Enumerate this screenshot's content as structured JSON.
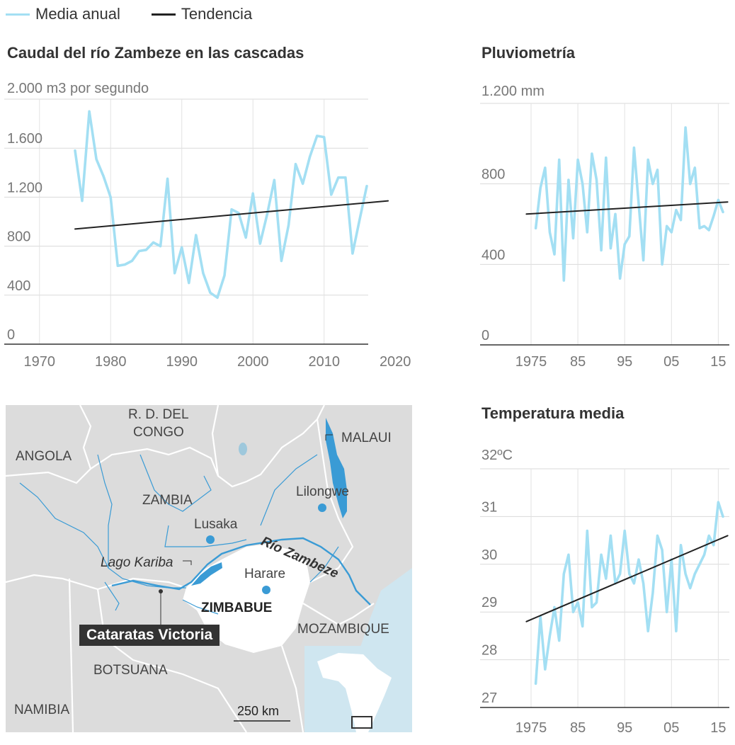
{
  "legend": {
    "items": [
      {
        "label": "Media anual",
        "color": "#a3dff3"
      },
      {
        "label": "Tendencia",
        "color": "#222222"
      }
    ]
  },
  "chart_data": [
    {
      "type": "line",
      "title": "Caudal del río Zambeze en las cascadas",
      "ylabel": "2.000 m3 por segundo",
      "ylim": [
        0,
        2000
      ],
      "yticks": [
        0,
        400,
        800,
        1200,
        1600
      ],
      "ytick_labels": [
        "0",
        "400",
        "800",
        "1.200",
        "1.600"
      ],
      "xlim": [
        1966,
        2018
      ],
      "xticks": [
        1970,
        1980,
        1990,
        2000,
        2010,
        2020
      ],
      "xtick_labels": [
        "1970",
        "1980",
        "1990",
        "2000",
        "2010",
        "2020"
      ],
      "grid": true,
      "series": [
        {
          "name": "Media anual",
          "x": [
            1975,
            1976,
            1977,
            1978,
            1979,
            1980,
            1981,
            1982,
            1983,
            1984,
            1985,
            1986,
            1987,
            1988,
            1989,
            1990,
            1991,
            1992,
            1993,
            1994,
            1995,
            1996,
            1997,
            1998,
            1999,
            2000,
            2001,
            2002,
            2003,
            2004,
            2005,
            2006,
            2007,
            2008,
            2009,
            2010,
            2011,
            2012,
            2013,
            2014,
            2015,
            2016
          ],
          "y": [
            1580,
            1170,
            1900,
            1510,
            1370,
            1200,
            640,
            650,
            680,
            760,
            770,
            830,
            800,
            1350,
            580,
            790,
            500,
            890,
            580,
            420,
            380,
            560,
            1100,
            1070,
            870,
            1230,
            820,
            1060,
            1340,
            680,
            970,
            1470,
            1310,
            1530,
            1700,
            1690,
            1220,
            1360,
            1360,
            740,
            1020,
            1290
          ]
        },
        {
          "name": "Tendencia",
          "x": [
            1975,
            2019
          ],
          "y": [
            940,
            1170
          ]
        }
      ]
    },
    {
      "type": "line",
      "title": "Pluviometría",
      "ylabel": "1.200 mm",
      "ylim": [
        0,
        1200
      ],
      "yticks": [
        0,
        400,
        800
      ],
      "ytick_labels": [
        "0",
        "400",
        "800"
      ],
      "xlim": [
        1975,
        2016
      ],
      "xticks": [
        1975,
        1985,
        1995,
        2005,
        2015
      ],
      "xtick_labels": [
        "1975",
        "85",
        "95",
        "05",
        "15"
      ],
      "grid": true,
      "series": [
        {
          "name": "Media anual",
          "x": [
            1976,
            1977,
            1978,
            1979,
            1980,
            1981,
            1982,
            1983,
            1984,
            1985,
            1986,
            1987,
            1988,
            1989,
            1990,
            1991,
            1992,
            1993,
            1994,
            1995,
            1996,
            1997,
            1998,
            1999,
            2000,
            2001,
            2002,
            2003,
            2004,
            2005,
            2006,
            2007,
            2008,
            2009,
            2010,
            2011,
            2012,
            2013,
            2014,
            2015,
            2016
          ],
          "y": [
            580,
            780,
            880,
            560,
            450,
            920,
            320,
            820,
            530,
            920,
            800,
            560,
            950,
            820,
            470,
            930,
            480,
            650,
            330,
            500,
            540,
            980,
            700,
            420,
            920,
            800,
            870,
            400,
            590,
            560,
            670,
            620,
            1080,
            800,
            880,
            580,
            590,
            570,
            640,
            720,
            660
          ]
        },
        {
          "name": "Tendencia",
          "x": [
            1974,
            2017
          ],
          "y": [
            650,
            710
          ]
        }
      ]
    },
    {
      "type": "line",
      "title": "Temperatura media",
      "ylabel": "32ºC",
      "ylim": [
        27,
        32
      ],
      "yticks": [
        27,
        28,
        29,
        30,
        31
      ],
      "ytick_labels": [
        "27",
        "28",
        "29",
        "30",
        "31"
      ],
      "xlim": [
        1975,
        2016
      ],
      "xticks": [
        1975,
        1985,
        1995,
        2005,
        2015
      ],
      "xtick_labels": [
        "1975",
        "85",
        "95",
        "05",
        "15"
      ],
      "grid": true,
      "series": [
        {
          "name": "Media anual",
          "x": [
            1976,
            1977,
            1978,
            1979,
            1980,
            1981,
            1982,
            1983,
            1984,
            1985,
            1986,
            1987,
            1988,
            1989,
            1990,
            1991,
            1992,
            1993,
            1994,
            1995,
            1996,
            1997,
            1998,
            1999,
            2000,
            2001,
            2002,
            2003,
            2004,
            2005,
            2006,
            2007,
            2008,
            2009,
            2010,
            2011,
            2012,
            2013,
            2014,
            2015,
            2016
          ],
          "y": [
            27.5,
            28.9,
            27.8,
            28.5,
            29.1,
            28.4,
            29.8,
            30.2,
            29.0,
            29.2,
            28.7,
            30.7,
            29.1,
            29.2,
            30.2,
            29.7,
            30.6,
            29.6,
            29.8,
            30.7,
            29.8,
            29.6,
            30.1,
            29.6,
            28.6,
            29.4,
            30.6,
            30.3,
            29.0,
            30.1,
            28.6,
            30.4,
            29.8,
            29.5,
            29.8,
            30.0,
            30.2,
            30.6,
            30.4,
            31.3,
            31.0
          ]
        },
        {
          "name": "Tendencia",
          "x": [
            1974,
            2017
          ],
          "y": [
            28.8,
            30.6
          ]
        }
      ]
    }
  ],
  "map": {
    "labels": {
      "rdc": "R. D. DEL",
      "rdc2": "CONGO",
      "angola": "ANGOLA",
      "zambia": "ZAMBIA",
      "malaui": "MALAUI",
      "lilongwe": "Lilongwe",
      "lusaka": "Lusaka",
      "rio": "Río Zambeze",
      "lago": "Lago Kariba",
      "harare": "Harare",
      "zimbabue": "ZIMBABUE",
      "cataratas": "Cataratas Victoria",
      "mozambique": "MOZAMBIQUE",
      "botsuana": "BOTSUANA",
      "namibia": "NAMIBIA",
      "scale": "250 km"
    },
    "colors": {
      "land": "#dcdcdc",
      "focus": "#ffffff",
      "water": "#3a9bd5",
      "sea": "#cfe6f0",
      "border": "#ffffff"
    }
  }
}
